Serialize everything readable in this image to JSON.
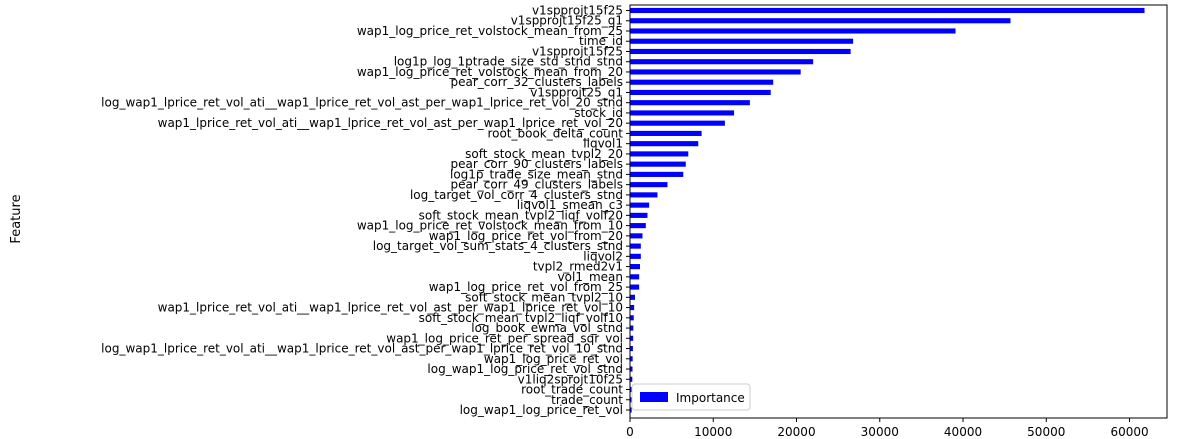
{
  "chart_data": {
    "type": "bar",
    "orientation": "horizontal",
    "ylabel": "Feature",
    "xlabel": "",
    "xlim": [
      0,
      64500
    ],
    "xticks": [
      0,
      10000,
      20000,
      30000,
      40000,
      50000,
      60000
    ],
    "grid": false,
    "legend": {
      "placement": "bottom-right",
      "entries": [
        "Importance"
      ]
    },
    "bar_color": "#0000ff",
    "categories": [
      "v1spprojt15f25",
      "v1spprojt15f25_q1",
      "wap1_log_price_ret_volstock_mean_from_25",
      "time_id",
      "v1spprojt15f25",
      "log1p_log_1ptrade_size_std_stnd_stnd",
      "wap1_log_price_ret_volstock_mean_from_20",
      "pear_corr_32_clusters_labels",
      "v1spprojt25_q1",
      "log_wap1_lprice_ret_vol_ati__wap1_lprice_ret_vol_ast_per_wap1_lprice_ret_vol_20_stnd",
      "stock_id",
      "wap1_lprice_ret_vol_ati__wap1_lprice_ret_vol_ast_per_wap1_lprice_ret_vol_20",
      "root_book_delta_count",
      "liqvol1",
      "soft_stock_mean_tvpl2_20",
      "pear_corr_90_clusters_labels",
      "log1p_trade_size_mean_stnd",
      "pear_corr_49_clusters_labels",
      "log_target_vol_corr_4_clusters_stnd",
      "liqvol1_smean_c3",
      "soft_stock_mean_tvpl2_liqf_volf20",
      "wap1_log_price_ret_volstock_mean_from_10",
      "wap1_log_price_ret_vol_from_20",
      "log_target_vol_sum_stats_4_clusters_stnd",
      "liqvol2",
      "tvpl2_rmed2v1",
      "vol1_mean",
      "wap1_log_price_ret_vol_from_25",
      "soft_stock_mean_tvpl2_10",
      "wap1_lprice_ret_vol_ati__wap1_lprice_ret_vol_ast_per_wap1_lprice_ret_vol_10",
      "soft_stock_mean_tvpl2_liqf_volf10",
      "log_book_ewma_vol_stnd",
      "wap1_log_price_ret_per_spread_sqr_vol",
      "log_wap1_lprice_ret_vol_ati__wap1_lprice_ret_vol_ast_per_wap1_lprice_ret_vol_10_stnd",
      "wap1_log_price_ret_vol",
      "log_wap1_log_price_ret_vol_stnd",
      "v1liq2sprojt10f25",
      "root_trade_count",
      "trade_count",
      "log_wap1_log_price_ret_vol"
    ],
    "series": [
      {
        "name": "Importance",
        "values": [
          61800,
          45700,
          39100,
          26800,
          26500,
          22000,
          20500,
          17200,
          16900,
          14400,
          12500,
          11400,
          8600,
          8200,
          7000,
          6700,
          6400,
          4500,
          3300,
          2300,
          2100,
          1900,
          1500,
          1300,
          1300,
          1200,
          1100,
          1100,
          600,
          500,
          450,
          400,
          380,
          350,
          320,
          300,
          280,
          250,
          230,
          200
        ]
      }
    ]
  }
}
